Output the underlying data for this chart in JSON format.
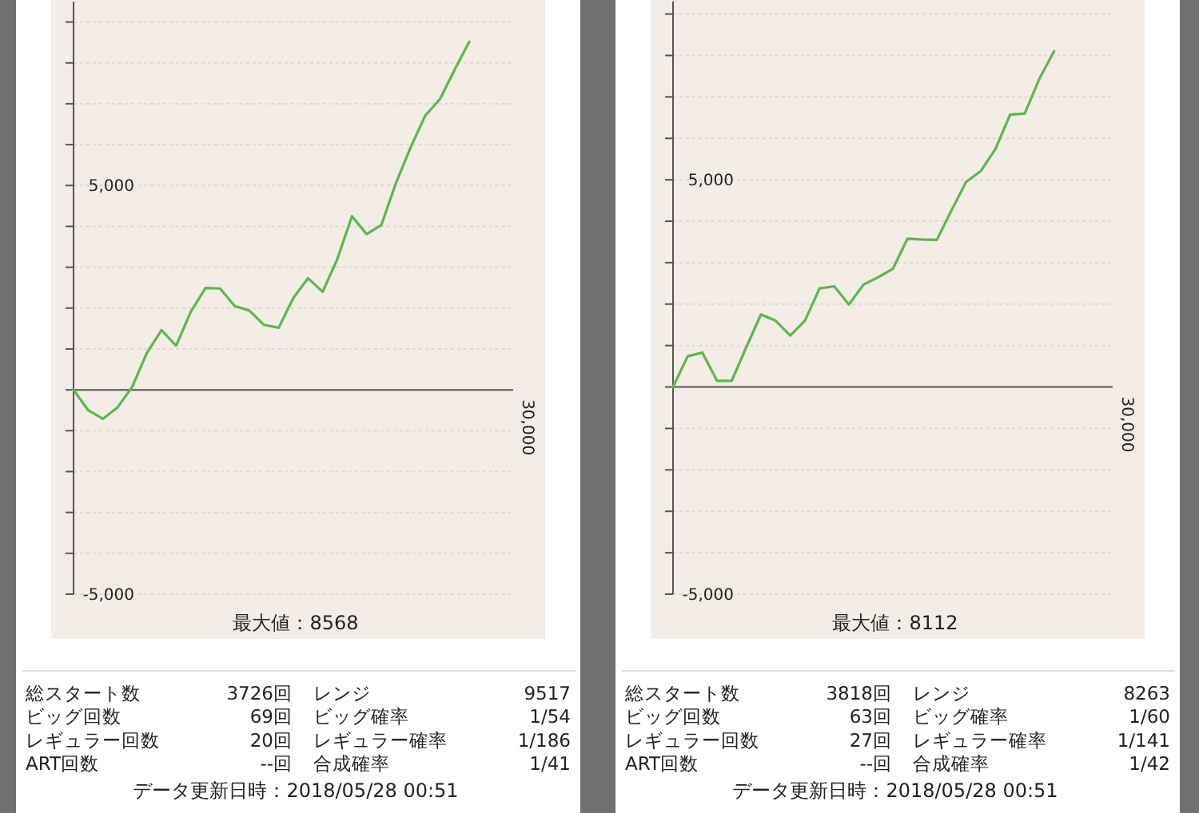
{
  "chart_data": [
    {
      "type": "line",
      "ylim": [
        -5000,
        9500
      ],
      "categories": [
        null,
        null,
        null,
        null,
        null,
        null,
        null,
        null,
        null,
        null,
        null,
        null,
        null,
        null,
        null,
        null,
        null,
        null,
        null,
        null,
        null,
        null,
        null,
        null,
        null,
        null,
        null,
        null,
        null,
        null,
        null
      ],
      "yticks": [
        {
          "value": -5000,
          "label": "-5,000"
        },
        {
          "value": -4000,
          "label": null
        },
        {
          "value": -3000,
          "label": null
        },
        {
          "value": -2000,
          "label": null
        },
        {
          "value": -1000,
          "label": null
        },
        {
          "value": 0,
          "label": null
        },
        {
          "value": 1000,
          "label": null
        },
        {
          "value": 2000,
          "label": null
        },
        {
          "value": 3000,
          "label": null
        },
        {
          "value": 4000,
          "label": null
        },
        {
          "value": 5000,
          "label": "5,000"
        },
        {
          "value": 6000,
          "label": null
        },
        {
          "value": 7000,
          "label": null
        },
        {
          "value": 8000,
          "label": null
        },
        {
          "value": 9000,
          "label": null
        }
      ],
      "grid": "y",
      "marker": "none",
      "line_style": "solid",
      "series": [
        {
          "color": "#5cb84a",
          "values": [
            0,
            -500,
            -710,
            -430,
            70,
            900,
            1460,
            1080,
            1910,
            2490,
            2480,
            2050,
            1940,
            1590,
            1520,
            2250,
            2730,
            2400,
            3200,
            4250,
            3810,
            4030,
            5060,
            5930,
            6710,
            7110,
            7830,
            8520,
            null,
            null,
            null
          ]
        }
      ],
      "annotations": [
        "最大値：8568",
        "総スタート数",
        "3726回",
        "レンジ",
        "9517",
        "ビッグ回数",
        "69回",
        "ビッグ確率",
        "1/54",
        "レギュラー回数",
        "20回",
        "レギュラー確率",
        "1/186",
        "ART回数",
        "--回",
        "合成確率",
        "1/41",
        "データ更新日時：2018/05/28 00:51",
        "30,000"
      ]
    },
    {
      "type": "line",
      "ylim": [
        -5000,
        9300
      ],
      "categories": [
        null,
        null,
        null,
        null,
        null,
        null,
        null,
        null,
        null,
        null,
        null,
        null,
        null,
        null,
        null,
        null,
        null,
        null,
        null,
        null,
        null,
        null,
        null,
        null,
        null,
        null,
        null,
        null,
        null,
        null,
        null
      ],
      "yticks": [
        {
          "value": -5000,
          "label": "-5,000"
        },
        {
          "value": -4000,
          "label": null
        },
        {
          "value": -3000,
          "label": null
        },
        {
          "value": -2000,
          "label": null
        },
        {
          "value": -1000,
          "label": null
        },
        {
          "value": 0,
          "label": null
        },
        {
          "value": 1000,
          "label": null
        },
        {
          "value": 2000,
          "label": null
        },
        {
          "value": 3000,
          "label": null
        },
        {
          "value": 4000,
          "label": null
        },
        {
          "value": 5000,
          "label": "5,000"
        },
        {
          "value": 6000,
          "label": null
        },
        {
          "value": 7000,
          "label": null
        },
        {
          "value": 8000,
          "label": null
        },
        {
          "value": 9000,
          "label": null
        }
      ],
      "grid": "y",
      "marker": "none",
      "line_style": "solid",
      "series": [
        {
          "color": "#5cb84a",
          "values": [
            0,
            740,
            830,
            150,
            150,
            960,
            1750,
            1600,
            1240,
            1600,
            2380,
            2430,
            1990,
            2470,
            2650,
            2850,
            3580,
            3560,
            3550,
            4260,
            4950,
            5210,
            5740,
            6570,
            6600,
            7440,
            8100,
            null,
            null,
            null,
            null
          ]
        }
      ],
      "annotations": [
        "最大値：8112",
        "総スタート数",
        "3818回",
        "レンジ",
        "8263",
        "ビッグ回数",
        "63回",
        "ビッグ確率",
        "1/60",
        "レギュラー回数",
        "27回",
        "レギュラー確率",
        "1/141",
        "ART回数",
        "--回",
        "合成確率",
        "1/42",
        "データ更新日時：2018/05/28 00:51",
        "30,000"
      ]
    }
  ]
}
